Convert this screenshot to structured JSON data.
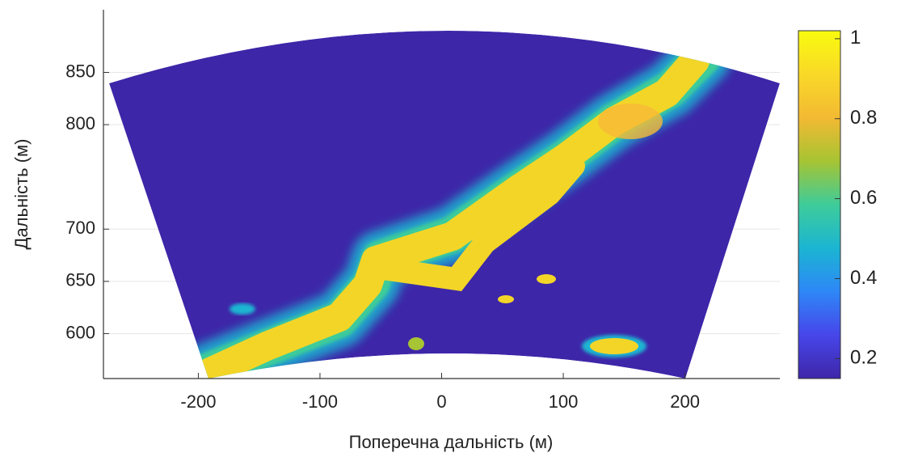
{
  "chart_data": {
    "type": "heatmap",
    "xlabel": "Поперечна дальність (м)",
    "ylabel": "Дальність (м)",
    "xlim": [
      -278,
      278
    ],
    "xticks": [
      -200,
      -100,
      0,
      100,
      200
    ],
    "ylim": [
      557,
      910
    ],
    "yticks": [
      600,
      650,
      700,
      800,
      850
    ],
    "grid": true,
    "colorbar": {
      "clim": [
        0.15,
        1.02
      ],
      "ticks": [
        0.2,
        0.4,
        0.6,
        0.8,
        1
      ],
      "colors": [
        "#3e26a8",
        "#4746ea",
        "#2e87f7",
        "#1bb5d2",
        "#3ecc9a",
        "#a6c433",
        "#f3b933",
        "#f9d928",
        "#f9fb0e"
      ]
    }
  }
}
